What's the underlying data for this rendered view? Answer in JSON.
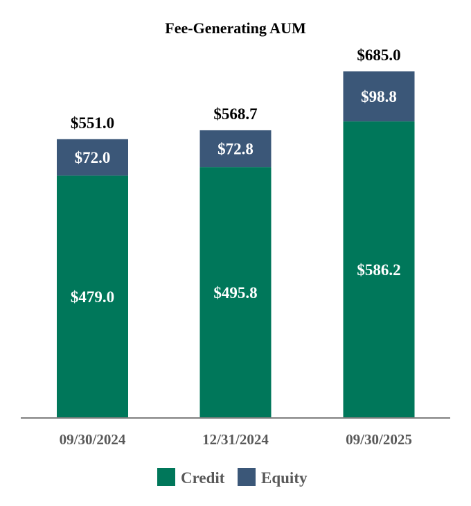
{
  "chart_data": {
    "type": "bar",
    "stacked": true,
    "title": "Fee-Generating AUM",
    "categories": [
      "09/30/2024",
      "12/31/2024",
      "09/30/2025"
    ],
    "series": [
      {
        "name": "Credit",
        "values": [
          479.0,
          495.8,
          586.2
        ],
        "labels": [
          "$479.0",
          "$495.8",
          "$586.2"
        ],
        "color": "#00775A"
      },
      {
        "name": "Equity",
        "values": [
          72.0,
          72.8,
          98.8
        ],
        "labels": [
          "$72.0",
          "$72.8",
          "$98.8"
        ],
        "color": "#3B5778"
      }
    ],
    "totals": [
      551.0,
      568.7,
      685.0
    ],
    "total_labels": [
      "$551.0",
      "$568.7",
      "$685.0"
    ],
    "ylim": [
      0,
      685.0
    ],
    "grid": false,
    "legend_position": "bottom",
    "axis_color": "#7F7F7F",
    "label_color": "#595959"
  }
}
